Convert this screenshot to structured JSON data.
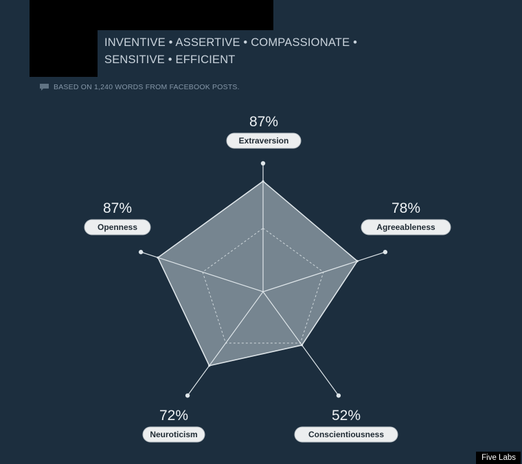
{
  "header": {
    "traits_line1": "INVENTIVE • ASSERTIVE • COMPASSIONATE •",
    "traits_line2": "SENSITIVE • EFFICIENT",
    "source_note": "BASED ON 1,240 WORDS FROM FACEBOOK POSTS.",
    "source_icon": "speech-bubble-icon"
  },
  "chart_data": {
    "type": "radar",
    "categories": [
      "Extraversion",
      "Agreeableness",
      "Conscientiousness",
      "Neuroticism",
      "Openness"
    ],
    "values": [
      87,
      78,
      52,
      72,
      87
    ],
    "value_labels": [
      "87%",
      "78%",
      "52%",
      "72%",
      "87%"
    ],
    "range": [
      0,
      100
    ],
    "reference_level": 50,
    "colors": {
      "background": "#1c2e3e",
      "fill": "#7b8a95",
      "stroke": "#dfe6ea",
      "text": "#eef2f5",
      "pill": "#eceeef"
    }
  },
  "footer": {
    "credit": "Five Labs"
  }
}
